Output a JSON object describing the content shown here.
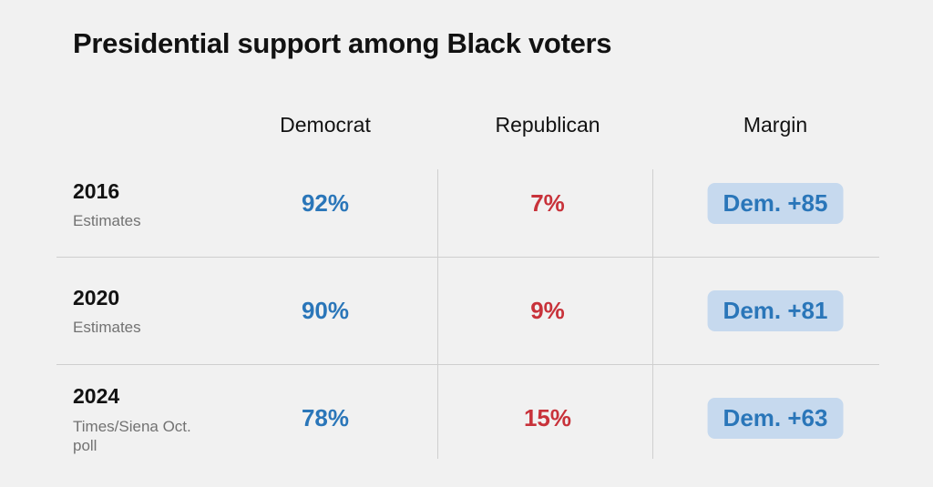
{
  "chart_data": {
    "type": "table",
    "title": "Presidential support among Black voters",
    "columns": [
      "Democrat",
      "Republican",
      "Margin"
    ],
    "rows": [
      {
        "year": "2016",
        "source": "Estimates",
        "democrat": "92%",
        "republican": "7%",
        "margin": "Dem. +85"
      },
      {
        "year": "2020",
        "source": "Estimates",
        "democrat": "90%",
        "republican": "9%",
        "margin": "Dem. +81"
      },
      {
        "year": "2024",
        "source": "Times/Siena Oct. poll",
        "democrat": "78%",
        "republican": "15%",
        "margin": "Dem. +63"
      }
    ],
    "colors": {
      "democrat": "#2a76b9",
      "republican": "#c8323a",
      "margin_badge_bg": "#c6d9ee",
      "background": "#f1f1f1"
    }
  }
}
